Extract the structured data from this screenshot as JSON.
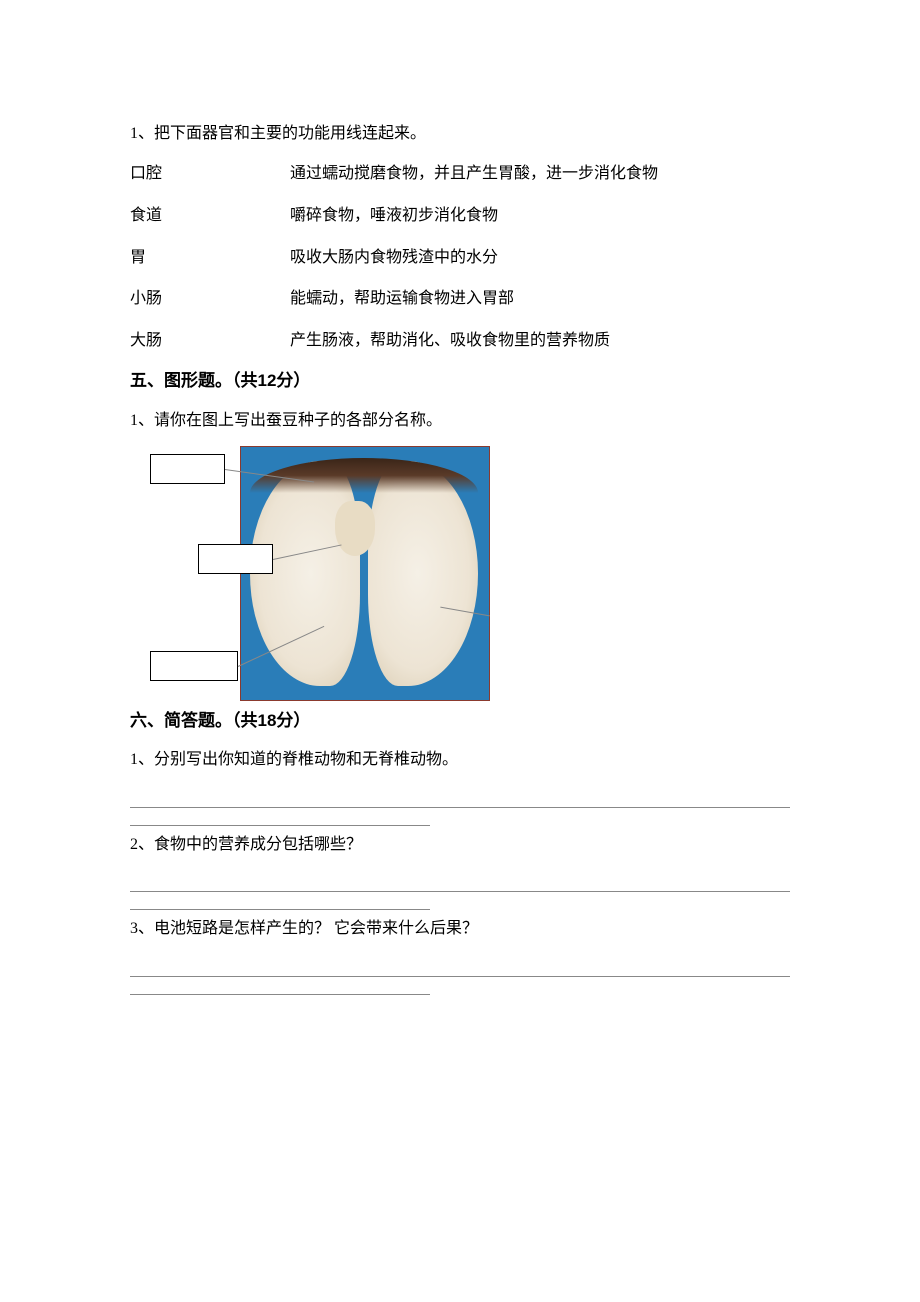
{
  "q1": {
    "prompt": "1、把下面器官和主要的功能用线连起来。",
    "rows": [
      {
        "left": "口腔",
        "right": "通过蠕动搅磨食物，并且产生胃酸，进一步消化食物"
      },
      {
        "left": "食道",
        "right": "嚼碎食物，唾液初步消化食物"
      },
      {
        "left": "胃",
        "right": "吸收大肠内食物残渣中的水分"
      },
      {
        "left": "小肠",
        "right": "能蠕动，帮助运输食物进入胃部"
      },
      {
        "left": "大肠",
        "right": "产生肠液，帮助消化、吸收食物里的营养物质"
      }
    ]
  },
  "section5": {
    "header": "五、图形题。（共12分）",
    "q1": "1、请你在图上写出蚕豆种子的各部分名称。"
  },
  "section6": {
    "header": "六、简答题。（共18分）",
    "q1": "1、分别写出你知道的脊椎动物和无脊椎动物。",
    "q2": "2、食物中的营养成分包括哪些？",
    "q3": "3、电池短路是怎样产生的？ 它会带来什么后果？"
  },
  "colors": {
    "text": "#000000",
    "line": "#888888",
    "diagram_bg": "#2a7db8",
    "seed_flesh": "#f5f0e6",
    "seed_coat": "#3a2518"
  }
}
